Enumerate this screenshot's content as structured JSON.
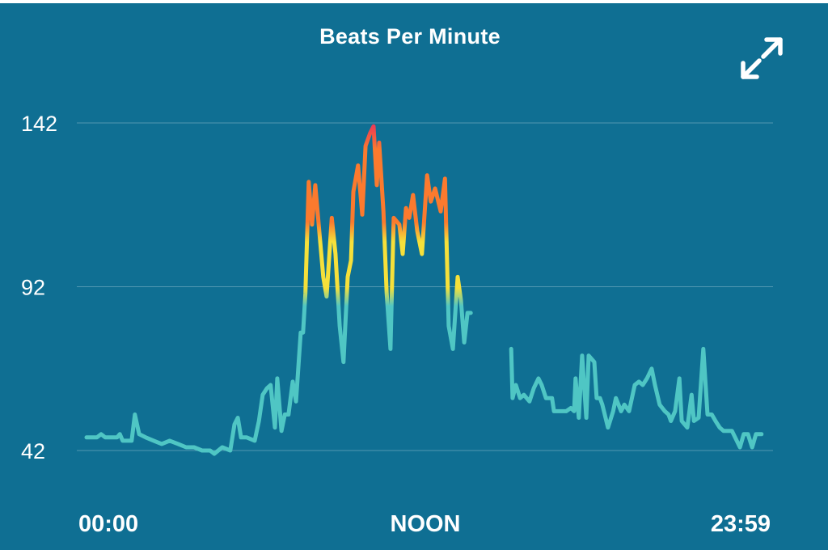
{
  "chart_data": {
    "type": "line",
    "title": "Beats Per Minute",
    "xlabel": "",
    "ylabel": "",
    "y_ticks": [
      142,
      92,
      42
    ],
    "ylim": [
      42,
      142
    ],
    "x_tick_labels": [
      "00:00",
      "NOON",
      "23:59"
    ],
    "x_range": [
      "00:00",
      "23:59"
    ],
    "grid": "horizontal",
    "line_color_zones": {
      "low": "#4fc6c4",
      "fat_burn": "#f5e03a",
      "cardio": "#fb7a2e",
      "peak": "#e8355a"
    },
    "background": "#0f6f93",
    "segments": [
      [
        [
          "00:00",
          46
        ],
        [
          "00:22",
          46
        ],
        [
          "00:31",
          47
        ],
        [
          "00:40",
          46
        ],
        [
          "01:05",
          46
        ],
        [
          "01:11",
          47
        ],
        [
          "01:17",
          45
        ],
        [
          "01:36",
          45
        ],
        [
          "01:43",
          53
        ],
        [
          "01:52",
          47
        ],
        [
          "02:06",
          46
        ],
        [
          "02:23",
          45
        ],
        [
          "02:40",
          44
        ],
        [
          "02:57",
          45
        ],
        [
          "03:15",
          44
        ],
        [
          "03:32",
          43
        ],
        [
          "03:49",
          43
        ],
        [
          "04:06",
          42
        ],
        [
          "04:23",
          42
        ],
        [
          "04:32",
          41
        ],
        [
          "04:49",
          43
        ],
        [
          "05:06",
          42
        ],
        [
          "05:15",
          50
        ],
        [
          "05:22",
          52
        ],
        [
          "05:29",
          46
        ],
        [
          "05:41",
          46
        ],
        [
          "05:58",
          45
        ],
        [
          "06:07",
          51
        ],
        [
          "06:15",
          59
        ],
        [
          "06:24",
          61
        ],
        [
          "06:32",
          62
        ],
        [
          "06:41",
          49
        ],
        [
          "06:46",
          64
        ],
        [
          "06:55",
          48
        ],
        [
          "07:02",
          53
        ],
        [
          "07:10",
          53
        ],
        [
          "07:19",
          63
        ],
        [
          "07:26",
          57
        ],
        [
          "07:36",
          78
        ],
        [
          "07:41",
          78
        ],
        [
          "07:46",
          90
        ],
        [
          "07:53",
          124
        ],
        [
          "08:00",
          111
        ],
        [
          "08:07",
          123
        ],
        [
          "08:16",
          108
        ],
        [
          "08:24",
          95
        ],
        [
          "08:31",
          89
        ],
        [
          "08:42",
          113
        ],
        [
          "08:50",
          102
        ],
        [
          "08:59",
          80
        ],
        [
          "09:07",
          69
        ],
        [
          "09:16",
          95
        ],
        [
          "09:23",
          100
        ],
        [
          "09:28",
          121
        ],
        [
          "09:38",
          129
        ],
        [
          "09:47",
          114
        ],
        [
          "09:54",
          135
        ],
        [
          "10:04",
          139
        ],
        [
          "10:11",
          141
        ],
        [
          "10:18",
          123
        ],
        [
          "10:23",
          136
        ],
        [
          "10:32",
          115
        ],
        [
          "10:39",
          90
        ],
        [
          "10:47",
          73
        ],
        [
          "10:54",
          113
        ],
        [
          "11:06",
          111
        ],
        [
          "11:13",
          102
        ],
        [
          "11:20",
          116
        ],
        [
          "11:27",
          113
        ],
        [
          "11:35",
          120
        ],
        [
          "11:44",
          109
        ],
        [
          "11:54",
          102
        ],
        [
          "12:05",
          126
        ],
        [
          "12:13",
          118
        ],
        [
          "12:22",
          122
        ],
        [
          "12:34",
          115
        ],
        [
          "12:43",
          125
        ],
        [
          "12:51",
          80
        ],
        [
          "13:00",
          73
        ],
        [
          "13:10",
          95
        ],
        [
          "13:17",
          88
        ],
        [
          "13:24",
          75
        ],
        [
          "13:31",
          84
        ],
        [
          "13:38",
          84
        ]
      ],
      [
        [
          "15:04",
          73
        ],
        [
          "15:07",
          58
        ],
        [
          "15:14",
          62
        ],
        [
          "15:23",
          58
        ],
        [
          "15:31",
          59
        ],
        [
          "15:43",
          57
        ],
        [
          "15:52",
          61
        ],
        [
          "16:02",
          64
        ],
        [
          "16:09",
          62
        ],
        [
          "16:18",
          58
        ],
        [
          "16:31",
          58
        ],
        [
          "16:35",
          54
        ],
        [
          "16:47",
          54
        ],
        [
          "17:01",
          54
        ],
        [
          "17:11",
          55
        ],
        [
          "17:18",
          54
        ],
        [
          "17:21",
          64
        ],
        [
          "17:28",
          52
        ],
        [
          "17:35",
          71
        ],
        [
          "17:44",
          52
        ],
        [
          "17:49",
          71
        ],
        [
          "18:01",
          69
        ],
        [
          "18:06",
          58
        ],
        [
          "18:13",
          58
        ],
        [
          "18:18",
          56
        ],
        [
          "18:30",
          49
        ],
        [
          "18:41",
          54
        ],
        [
          "18:47",
          58
        ],
        [
          "18:58",
          54
        ],
        [
          "19:05",
          56
        ],
        [
          "19:15",
          54
        ],
        [
          "19:27",
          62
        ],
        [
          "19:36",
          63
        ],
        [
          "19:44",
          62
        ],
        [
          "19:53",
          64
        ],
        [
          "20:03",
          67
        ],
        [
          "20:10",
          62
        ],
        [
          "20:20",
          56
        ],
        [
          "20:31",
          54
        ],
        [
          "20:39",
          53
        ],
        [
          "20:44",
          51
        ],
        [
          "20:53",
          54
        ],
        [
          "21:02",
          64
        ],
        [
          "21:07",
          51
        ],
        [
          "21:19",
          49
        ],
        [
          "21:28",
          59
        ],
        [
          "21:33",
          51
        ],
        [
          "21:43",
          52
        ],
        [
          "21:53",
          73
        ],
        [
          "22:02",
          53
        ],
        [
          "22:11",
          53
        ],
        [
          "22:19",
          51
        ],
        [
          "22:28",
          49
        ],
        [
          "22:36",
          48
        ],
        [
          "22:54",
          48
        ],
        [
          "23:11",
          43
        ],
        [
          "23:19",
          47
        ],
        [
          "23:28",
          47
        ],
        [
          "23:37",
          43
        ],
        [
          "23:45",
          47
        ],
        [
          "23:57",
          47
        ]
      ]
    ]
  },
  "controls": {
    "expand_icon": "expand-arrows-icon"
  }
}
